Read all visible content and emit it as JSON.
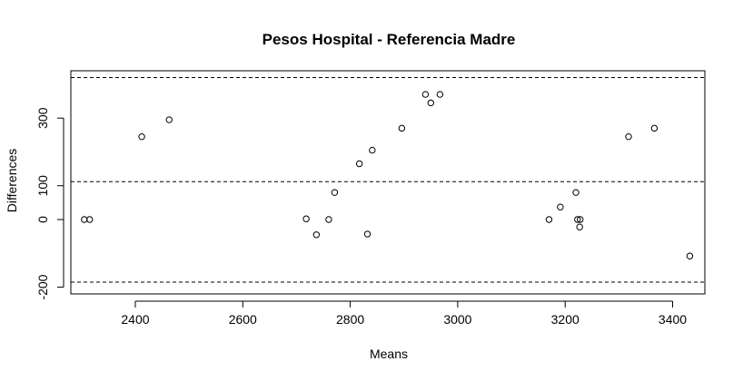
{
  "chart_data": {
    "type": "scatter",
    "title": "Pesos Hospital - Referencia Madre",
    "xlabel": "Means",
    "ylabel": "Differences",
    "xlim": [
      2280,
      3460
    ],
    "ylim": [
      -220,
      440
    ],
    "xticks": [
      2400,
      2600,
      2800,
      3000,
      3200,
      3400
    ],
    "yticks": [
      -200,
      0,
      100,
      300
    ],
    "reference_lines": [
      420,
      112,
      -185
    ],
    "grid": false,
    "points": [
      {
        "x": 2305,
        "y": 0
      },
      {
        "x": 2315,
        "y": 0
      },
      {
        "x": 2412,
        "y": 245
      },
      {
        "x": 2463,
        "y": 295
      },
      {
        "x": 2718,
        "y": 2
      },
      {
        "x": 2737,
        "y": -45
      },
      {
        "x": 2760,
        "y": 0
      },
      {
        "x": 2771,
        "y": 80
      },
      {
        "x": 2817,
        "y": 165
      },
      {
        "x": 2832,
        "y": -43
      },
      {
        "x": 2841,
        "y": 205
      },
      {
        "x": 2896,
        "y": 270
      },
      {
        "x": 2940,
        "y": 370
      },
      {
        "x": 2950,
        "y": 345
      },
      {
        "x": 2967,
        "y": 370
      },
      {
        "x": 3170,
        "y": 0
      },
      {
        "x": 3191,
        "y": 37
      },
      {
        "x": 3220,
        "y": 80
      },
      {
        "x": 3223,
        "y": 0
      },
      {
        "x": 3227,
        "y": -22
      },
      {
        "x": 3228,
        "y": 0
      },
      {
        "x": 3318,
        "y": 245
      },
      {
        "x": 3366,
        "y": 270
      },
      {
        "x": 3432,
        "y": -108
      }
    ]
  }
}
